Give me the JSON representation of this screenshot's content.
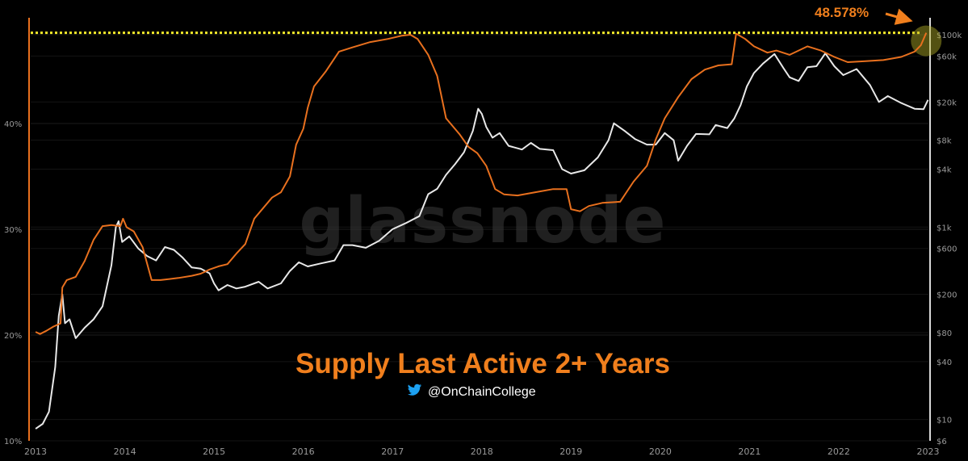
{
  "chart_data": {
    "type": "line",
    "title": "Supply Last Active 2+ Years",
    "watermark": "glassnode",
    "handle": "@OnChainCollege",
    "handle_icon": "twitter-bird-icon",
    "annotation": {
      "text": "48.578%",
      "value": 48.578
    },
    "x_ticks": [
      "2013",
      "2014",
      "2015",
      "2016",
      "2017",
      "2018",
      "2019",
      "2020",
      "2021",
      "2022",
      "2023"
    ],
    "left_axis": {
      "scale": "linear",
      "unit": "%",
      "ticks": [
        {
          "value": 10,
          "label": "10%"
        },
        {
          "value": 20,
          "label": "20%"
        },
        {
          "value": 30,
          "label": "30%"
        },
        {
          "value": 40,
          "label": "40%"
        }
      ],
      "range": [
        10,
        50
      ]
    },
    "right_axis": {
      "scale": "log",
      "unit": "$",
      "ticks": [
        {
          "value": 6,
          "label": "$6"
        },
        {
          "value": 10,
          "label": "$10"
        },
        {
          "value": 40,
          "label": "$40"
        },
        {
          "value": 80,
          "label": "$80"
        },
        {
          "value": 200,
          "label": "$200"
        },
        {
          "value": 600,
          "label": "$600"
        },
        {
          "value": 1000,
          "label": "$1k"
        },
        {
          "value": 4000,
          "label": "$4k"
        },
        {
          "value": 8000,
          "label": "$8k"
        },
        {
          "value": 20000,
          "label": "$20k"
        },
        {
          "value": 60000,
          "label": "$60k"
        },
        {
          "value": 100000,
          "label": "$100k"
        }
      ],
      "range": [
        6,
        150000
      ]
    },
    "colors": {
      "supply": "#e8701e",
      "price": "#e8e8e8",
      "reference_line": "#f2e82a",
      "title": "#f07f1d",
      "axis_left": "#e8701e",
      "axis_right": "#d8d8d8",
      "twitter": "#1da1f2",
      "highlight": "#b8b428"
    },
    "grid": true,
    "series": [
      {
        "key": "supply",
        "axis": "left",
        "points": [
          [
            2013.0,
            20.3
          ],
          [
            2013.05,
            20.1
          ],
          [
            2013.12,
            20.4
          ],
          [
            2013.2,
            20.8
          ],
          [
            2013.28,
            21.1
          ],
          [
            2013.3,
            24.5
          ],
          [
            2013.35,
            25.2
          ],
          [
            2013.45,
            25.5
          ],
          [
            2013.55,
            27.0
          ],
          [
            2013.65,
            29.0
          ],
          [
            2013.75,
            30.3
          ],
          [
            2013.85,
            30.4
          ],
          [
            2013.95,
            30.3
          ],
          [
            2013.98,
            31.0
          ],
          [
            2014.02,
            30.2
          ],
          [
            2014.1,
            29.8
          ],
          [
            2014.2,
            28.3
          ],
          [
            2014.3,
            25.2
          ],
          [
            2014.4,
            25.2
          ],
          [
            2014.5,
            25.3
          ],
          [
            2014.6,
            25.4
          ],
          [
            2014.75,
            25.6
          ],
          [
            2014.85,
            25.8
          ],
          [
            2014.95,
            26.2
          ],
          [
            2015.05,
            26.5
          ],
          [
            2015.15,
            26.7
          ],
          [
            2015.25,
            27.7
          ],
          [
            2015.35,
            28.6
          ],
          [
            2015.45,
            31.0
          ],
          [
            2015.55,
            32.0
          ],
          [
            2015.65,
            33.0
          ],
          [
            2015.75,
            33.5
          ],
          [
            2015.85,
            35.0
          ],
          [
            2015.92,
            38.0
          ],
          [
            2016.0,
            39.5
          ],
          [
            2016.05,
            41.5
          ],
          [
            2016.12,
            43.5
          ],
          [
            2016.25,
            44.9
          ],
          [
            2016.4,
            46.8
          ],
          [
            2016.55,
            47.2
          ],
          [
            2016.75,
            47.7
          ],
          [
            2016.95,
            48.0
          ],
          [
            2017.1,
            48.3
          ],
          [
            2017.2,
            48.4
          ],
          [
            2017.28,
            48.0
          ],
          [
            2017.4,
            46.5
          ],
          [
            2017.5,
            44.5
          ],
          [
            2017.6,
            40.5
          ],
          [
            2017.75,
            39.0
          ],
          [
            2017.85,
            37.8
          ],
          [
            2017.95,
            37.2
          ],
          [
            2018.05,
            36.0
          ],
          [
            2018.15,
            33.8
          ],
          [
            2018.25,
            33.3
          ],
          [
            2018.4,
            33.2
          ],
          [
            2018.6,
            33.5
          ],
          [
            2018.8,
            33.8
          ],
          [
            2018.95,
            33.8
          ],
          [
            2019.0,
            31.9
          ],
          [
            2019.1,
            31.7
          ],
          [
            2019.2,
            32.2
          ],
          [
            2019.35,
            32.5
          ],
          [
            2019.55,
            32.6
          ],
          [
            2019.7,
            34.5
          ],
          [
            2019.85,
            36.0
          ],
          [
            2019.95,
            38.5
          ],
          [
            2020.05,
            40.5
          ],
          [
            2020.2,
            42.5
          ],
          [
            2020.35,
            44.2
          ],
          [
            2020.5,
            45.1
          ],
          [
            2020.65,
            45.5
          ],
          [
            2020.8,
            45.6
          ],
          [
            2020.85,
            48.5
          ],
          [
            2020.95,
            48.0
          ],
          [
            2021.05,
            47.3
          ],
          [
            2021.2,
            46.7
          ],
          [
            2021.3,
            46.9
          ],
          [
            2021.45,
            46.5
          ],
          [
            2021.55,
            46.9
          ],
          [
            2021.65,
            47.3
          ],
          [
            2021.8,
            46.9
          ],
          [
            2021.95,
            46.3
          ],
          [
            2022.1,
            45.8
          ],
          [
            2022.3,
            45.9
          ],
          [
            2022.5,
            46.0
          ],
          [
            2022.7,
            46.3
          ],
          [
            2022.85,
            46.8
          ],
          [
            2022.92,
            47.4
          ],
          [
            2022.98,
            48.578
          ]
        ]
      },
      {
        "key": "price",
        "axis": "right",
        "points": [
          [
            2013.0,
            8
          ],
          [
            2013.08,
            9
          ],
          [
            2013.15,
            12
          ],
          [
            2013.22,
            35
          ],
          [
            2013.26,
            120
          ],
          [
            2013.3,
            200
          ],
          [
            2013.33,
            100
          ],
          [
            2013.38,
            110
          ],
          [
            2013.45,
            70
          ],
          [
            2013.55,
            90
          ],
          [
            2013.65,
            110
          ],
          [
            2013.75,
            150
          ],
          [
            2013.85,
            400
          ],
          [
            2013.9,
            1000
          ],
          [
            2013.93,
            1150
          ],
          [
            2013.97,
            700
          ],
          [
            2014.05,
            800
          ],
          [
            2014.15,
            600
          ],
          [
            2014.25,
            500
          ],
          [
            2014.35,
            450
          ],
          [
            2014.45,
            620
          ],
          [
            2014.55,
            580
          ],
          [
            2014.65,
            480
          ],
          [
            2014.75,
            380
          ],
          [
            2014.85,
            370
          ],
          [
            2014.95,
            330
          ],
          [
            2015.0,
            260
          ],
          [
            2015.05,
            220
          ],
          [
            2015.15,
            250
          ],
          [
            2015.25,
            230
          ],
          [
            2015.35,
            240
          ],
          [
            2015.5,
            270
          ],
          [
            2015.6,
            230
          ],
          [
            2015.75,
            260
          ],
          [
            2015.85,
            350
          ],
          [
            2015.95,
            430
          ],
          [
            2016.05,
            390
          ],
          [
            2016.2,
            420
          ],
          [
            2016.35,
            450
          ],
          [
            2016.45,
            650
          ],
          [
            2016.55,
            650
          ],
          [
            2016.7,
            610
          ],
          [
            2016.85,
            720
          ],
          [
            2017.0,
            950
          ],
          [
            2017.15,
            1100
          ],
          [
            2017.3,
            1300
          ],
          [
            2017.4,
            2200
          ],
          [
            2017.5,
            2500
          ],
          [
            2017.6,
            3500
          ],
          [
            2017.7,
            4500
          ],
          [
            2017.8,
            6000
          ],
          [
            2017.9,
            10000
          ],
          [
            2017.96,
            17000
          ],
          [
            2018.0,
            15000
          ],
          [
            2018.05,
            11000
          ],
          [
            2018.12,
            8500
          ],
          [
            2018.2,
            9500
          ],
          [
            2018.3,
            7000
          ],
          [
            2018.45,
            6400
          ],
          [
            2018.55,
            7500
          ],
          [
            2018.65,
            6500
          ],
          [
            2018.8,
            6300
          ],
          [
            2018.9,
            4000
          ],
          [
            2019.0,
            3600
          ],
          [
            2019.15,
            3900
          ],
          [
            2019.3,
            5300
          ],
          [
            2019.42,
            8000
          ],
          [
            2019.48,
            12000
          ],
          [
            2019.6,
            10000
          ],
          [
            2019.72,
            8200
          ],
          [
            2019.85,
            7200
          ],
          [
            2019.95,
            7200
          ],
          [
            2020.05,
            9500
          ],
          [
            2020.15,
            8000
          ],
          [
            2020.2,
            4900
          ],
          [
            2020.3,
            7000
          ],
          [
            2020.4,
            9300
          ],
          [
            2020.55,
            9200
          ],
          [
            2020.62,
            11500
          ],
          [
            2020.75,
            10700
          ],
          [
            2020.83,
            13500
          ],
          [
            2020.9,
            18500
          ],
          [
            2020.97,
            29000
          ],
          [
            2021.05,
            40000
          ],
          [
            2021.15,
            50000
          ],
          [
            2021.28,
            63000
          ],
          [
            2021.38,
            45000
          ],
          [
            2021.45,
            36000
          ],
          [
            2021.55,
            33000
          ],
          [
            2021.65,
            46000
          ],
          [
            2021.75,
            47000
          ],
          [
            2021.85,
            64000
          ],
          [
            2021.95,
            47000
          ],
          [
            2022.05,
            38000
          ],
          [
            2022.2,
            44000
          ],
          [
            2022.35,
            30000
          ],
          [
            2022.45,
            20000
          ],
          [
            2022.55,
            23000
          ],
          [
            2022.7,
            19500
          ],
          [
            2022.85,
            17000
          ],
          [
            2022.95,
            16800
          ],
          [
            2023.0,
            21000
          ]
        ]
      }
    ]
  }
}
